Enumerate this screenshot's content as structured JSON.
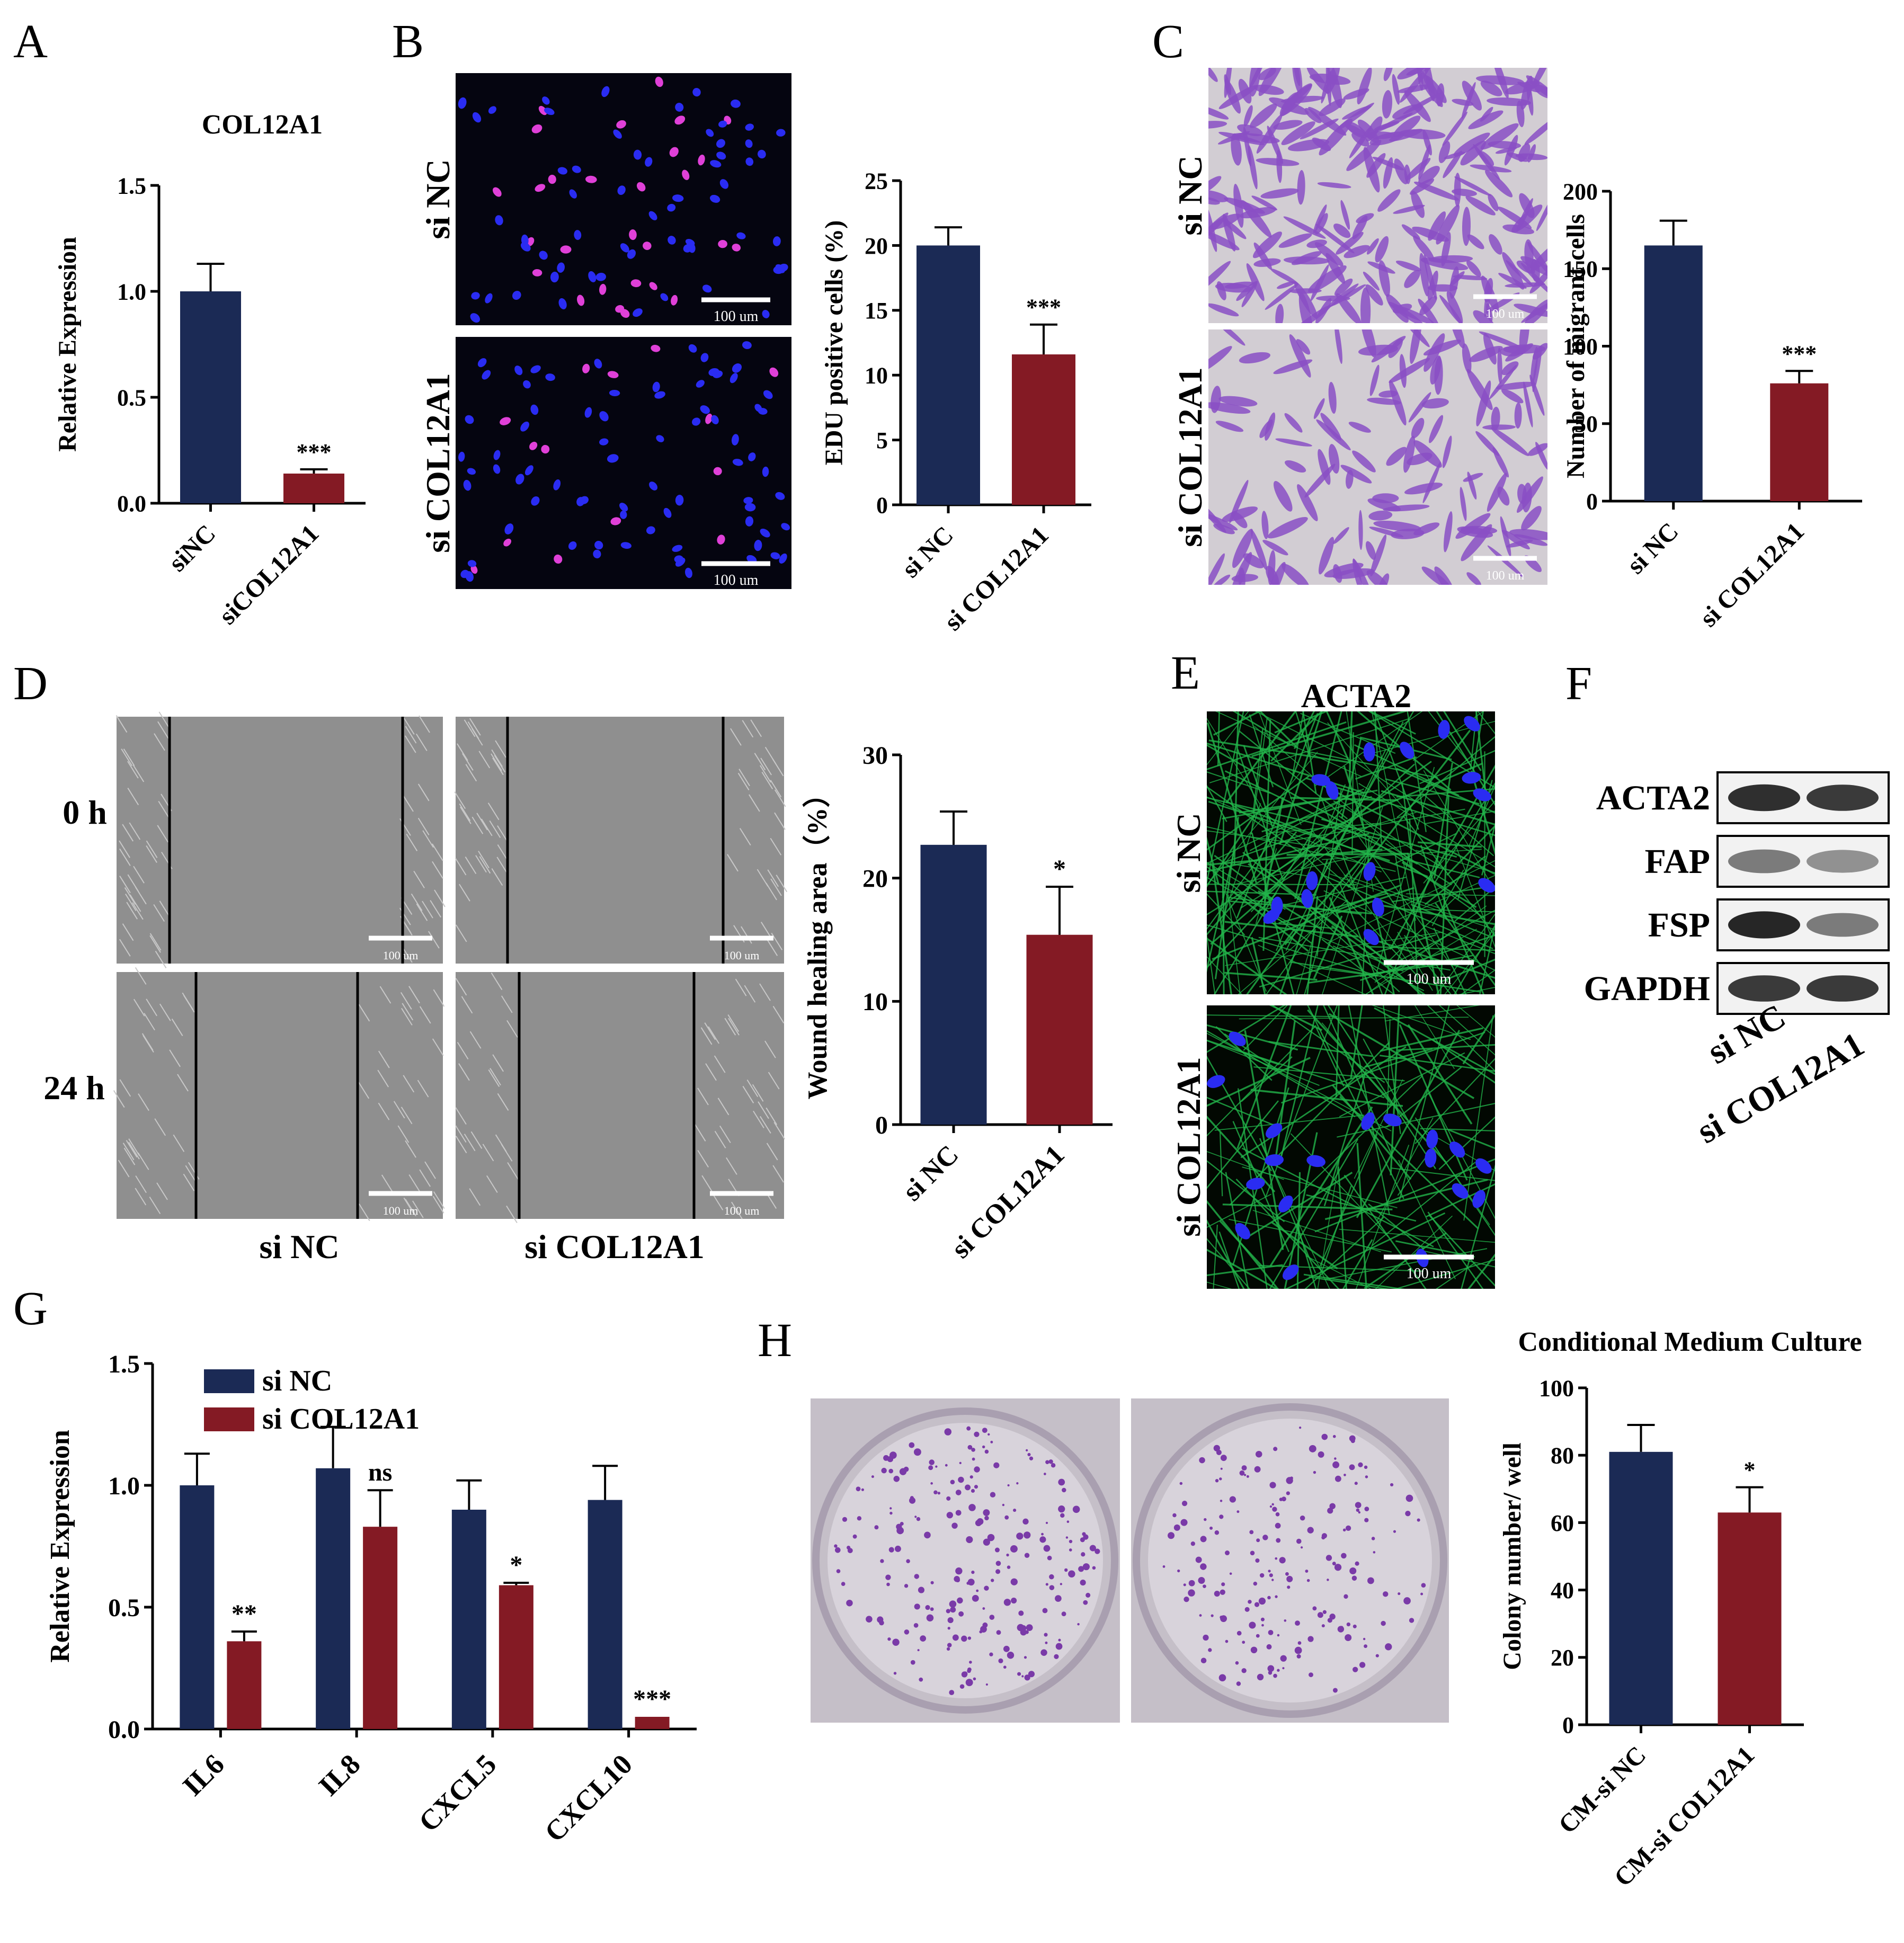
{
  "colors": {
    "navy": "#1b2a55",
    "maroon": "#841a24",
    "axis": "#000000",
    "fluor_bg": "#050510",
    "nucleus": "#2a2cf2",
    "edu": "#e040d8",
    "crystal_bg": "#d2cdd3",
    "crystal_cell": "#8a4fc4",
    "phase_bg": "#8f8f8f",
    "actin": "#22b44a",
    "well_bg": "#c5bfc8",
    "colony": "#7a3aa8"
  },
  "panel_letters": {
    "A": "A",
    "B": "B",
    "C": "C",
    "D": "D",
    "E": "E",
    "F": "F",
    "G": "G",
    "H": "H"
  },
  "image_labels": {
    "b_top": "si NC",
    "b_bottom": "si COL12A1",
    "c_top": "si NC",
    "c_bottom": "si COL12A1",
    "d_row1": "0 h",
    "d_row2": "24 h",
    "d_col1": "si NC",
    "d_col2": "si COL12A1",
    "e_title": "ACTA2",
    "e_top": "si NC",
    "e_bottom": "si COL12A1",
    "scale_bar": "100 um"
  },
  "western": {
    "bands": [
      "ACTA2",
      "FAP",
      "FSP",
      "GAPDH"
    ],
    "lanes": [
      "si NC",
      "si COL12A1"
    ]
  },
  "chart_data": [
    {
      "id": "A",
      "type": "bar",
      "title": "COL12A1",
      "ylabel": "Relative Expression",
      "categories": [
        "siNC",
        "siCOL12A1"
      ],
      "values": [
        1.0,
        0.14
      ],
      "errors": [
        0.13,
        0.02
      ],
      "significance": [
        "",
        "***"
      ],
      "ylim": [
        0,
        1.5
      ],
      "yticks": [
        "0.0",
        "0.5",
        "1.0",
        "1.5"
      ],
      "ytick_values": [
        0,
        0.5,
        1.0,
        1.5
      ]
    },
    {
      "id": "B",
      "type": "bar",
      "title": "",
      "ylabel": "EDU positive cells (%)",
      "categories": [
        "si NC",
        "si COL12A1"
      ],
      "values": [
        20.0,
        11.6
      ],
      "errors": [
        1.4,
        2.3
      ],
      "significance": [
        "",
        "***"
      ],
      "ylim": [
        0,
        25
      ],
      "yticks": [
        "0",
        "5",
        "10",
        "15",
        "20",
        "25"
      ],
      "ytick_values": [
        0,
        5,
        10,
        15,
        20,
        25
      ]
    },
    {
      "id": "C",
      "type": "bar",
      "title": "",
      "ylabel": "Number of migrant cells",
      "categories": [
        "si NC",
        "si COL12A1"
      ],
      "values": [
        165,
        76
      ],
      "errors": [
        16,
        8
      ],
      "significance": [
        "",
        "***"
      ],
      "ylim": [
        0,
        200
      ],
      "yticks": [
        "0",
        "50",
        "100",
        "150",
        "200"
      ],
      "ytick_values": [
        0,
        50,
        100,
        150,
        200
      ]
    },
    {
      "id": "D",
      "type": "bar",
      "title": "",
      "ylabel": "Wound healing area（%）",
      "categories": [
        "si NC",
        "si COL12A1"
      ],
      "values": [
        22.7,
        15.4
      ],
      "errors": [
        2.7,
        3.9
      ],
      "significance": [
        "",
        "*"
      ],
      "ylim": [
        0,
        30
      ],
      "yticks": [
        "0",
        "10",
        "20",
        "30"
      ],
      "ytick_values": [
        0,
        10,
        20,
        30
      ]
    },
    {
      "id": "G",
      "type": "bar",
      "title": "",
      "ylabel": "Relative Expression",
      "categories": [
        "IL6",
        "IL8",
        "CXCL5",
        "CXCL10"
      ],
      "series": [
        {
          "name": "si NC",
          "values": [
            1.0,
            1.07,
            0.9,
            0.94
          ],
          "errors": [
            0.13,
            0.17,
            0.12,
            0.14
          ]
        },
        {
          "name": "si COL12A1",
          "values": [
            0.36,
            0.83,
            0.59,
            0.05
          ],
          "errors": [
            0.04,
            0.15,
            0.01,
            0.0
          ]
        }
      ],
      "significance": [
        "**",
        "ns",
        "*",
        "***"
      ],
      "ylim": [
        0,
        1.5
      ],
      "yticks": [
        "0.0",
        "0.5",
        "1.0",
        "1.5"
      ],
      "ytick_values": [
        0,
        0.5,
        1.0,
        1.5
      ],
      "legend": "top-left"
    },
    {
      "id": "H",
      "type": "bar",
      "title": "Conditional Medium Culture",
      "ylabel": "Colony number/ well",
      "categories": [
        "CM-si NC",
        "CM-si COL12A1"
      ],
      "values": [
        81,
        63
      ],
      "errors": [
        8,
        7.5
      ],
      "significance": [
        "",
        "*"
      ],
      "ylim": [
        0,
        100
      ],
      "yticks": [
        "0",
        "20",
        "40",
        "60",
        "80",
        "100"
      ],
      "ytick_values": [
        0,
        20,
        40,
        60,
        80,
        100
      ]
    }
  ]
}
